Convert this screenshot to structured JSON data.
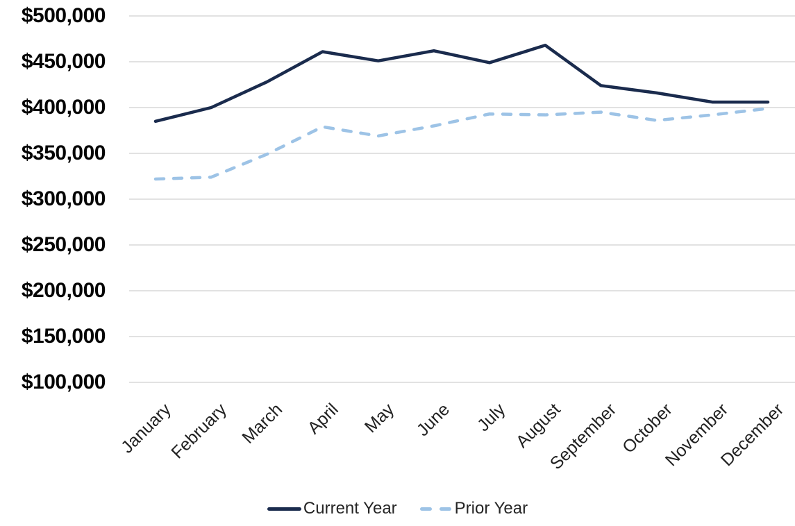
{
  "chart_data": {
    "type": "line",
    "title": "",
    "xlabel": "",
    "ylabel": "",
    "categories": [
      "January",
      "February",
      "March",
      "April",
      "May",
      "June",
      "July",
      "August",
      "September",
      "October",
      "November",
      "December"
    ],
    "series": [
      {
        "name": "Current Year",
        "style": "solid",
        "color": "#1a2b4d",
        "values": [
          385000,
          400000,
          428000,
          461000,
          451000,
          462000,
          449000,
          468000,
          424000,
          416000,
          406000,
          406000
        ]
      },
      {
        "name": "Prior Year",
        "style": "dashed",
        "color": "#9dc3e6",
        "values": [
          322000,
          324000,
          349000,
          379000,
          369000,
          380000,
          393000,
          392000,
          395000,
          386000,
          392000,
          399000
        ]
      }
    ],
    "ylim": [
      100000,
      500000
    ],
    "yticks": [
      500000,
      450000,
      400000,
      350000,
      300000,
      250000,
      200000,
      150000,
      100000
    ],
    "ytick_labels": [
      "$500,000",
      "$450,000",
      "$400,000",
      "$350,000",
      "$300,000",
      "$250,000",
      "$200,000",
      "$150,000",
      "$100,000"
    ],
    "grid": "horizontal",
    "gridline_color": "#d9d9d9",
    "background_color": "#ffffff",
    "legend_position": "bottom"
  }
}
